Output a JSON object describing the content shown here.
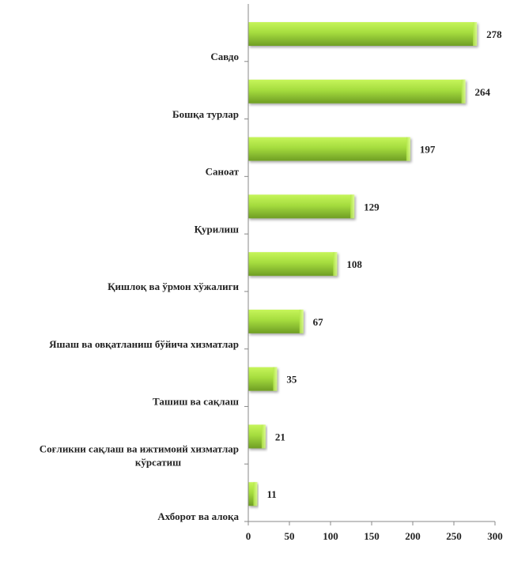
{
  "chart_data": {
    "type": "bar",
    "orientation": "horizontal",
    "categories": [
      "Савдо",
      "Бошқа турлар",
      "Саноат",
      "Қурилиш",
      "Қишлоқ ва ўрмон хўжалиги",
      "Яшаш ва овқатланиш бўйича хизматлар",
      "Ташиш ва сақлаш",
      "Соғликни сақлаш ва ижтимоий хизматлар кўрсатиш",
      "Ахборот ва алоқа"
    ],
    "values": [
      278,
      264,
      197,
      129,
      108,
      67,
      35,
      21,
      11
    ],
    "xlim": [
      0,
      300
    ],
    "xticks": [
      0,
      50,
      100,
      150,
      200,
      250,
      300
    ],
    "grid": false,
    "title": "",
    "xlabel": "",
    "ylabel": "",
    "bar_color": "#9acd32"
  }
}
